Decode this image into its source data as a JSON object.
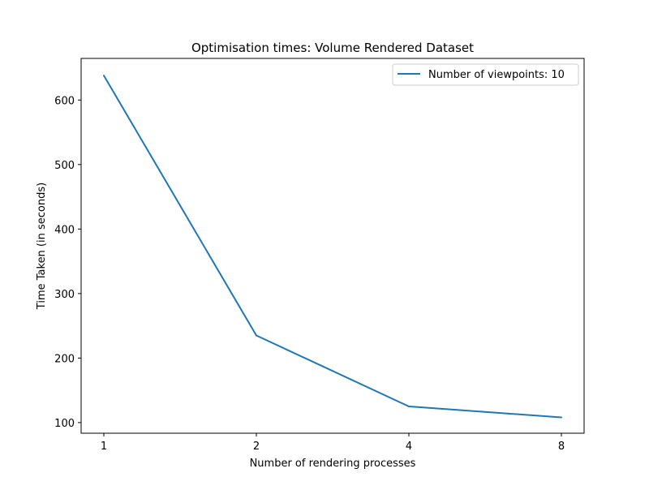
{
  "chart_data": {
    "type": "line",
    "title": "Optimisation times: Volume Rendered Dataset",
    "xlabel": "Number of rendering processes",
    "ylabel": "Time Taken (in seconds)",
    "categories": [
      "1",
      "2",
      "4",
      "8"
    ],
    "series": [
      {
        "name": "Number of viewpoints: 10",
        "color": "#1f77b4",
        "values": [
          638,
          235,
          125,
          108
        ]
      }
    ],
    "ylim": [
      83.5,
      664.5
    ],
    "yticks": [
      100,
      200,
      300,
      400,
      500,
      600
    ],
    "ytick_labels": [
      "100",
      "200",
      "300",
      "400",
      "500",
      "600"
    ],
    "grid": false,
    "legend_position": "upper right"
  }
}
